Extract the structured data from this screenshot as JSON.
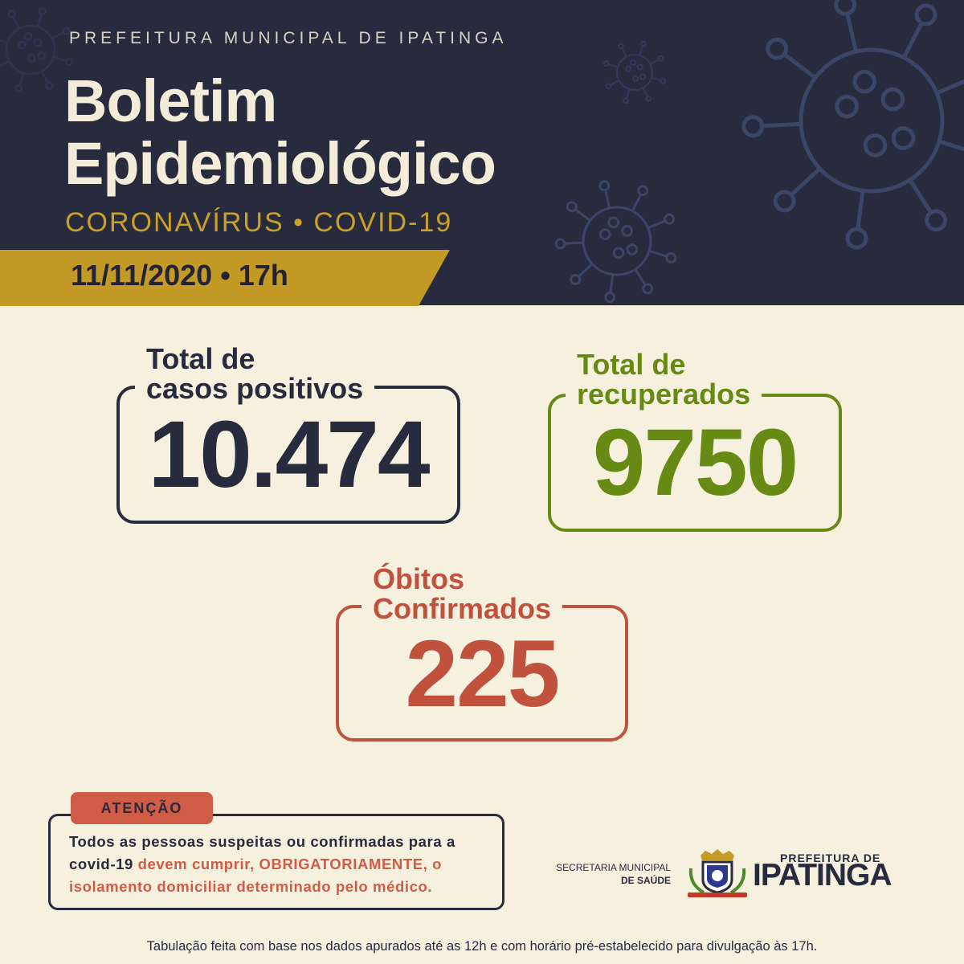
{
  "header": {
    "supertitle": "PREFEITURA MUNICIPAL DE IPATINGA",
    "title_line1": "Boletim",
    "title_line2": "Epidemiológico",
    "subtitle": "CORONAVÍRUS • COVID-19",
    "date": "11/11/2020 • 17h"
  },
  "stats": {
    "positive": {
      "label_line1": "Total de",
      "label_line2": "casos positivos",
      "value": "10.474",
      "color": "#282a3e"
    },
    "recovered": {
      "label_line1": "Total de",
      "label_line2": "recuperados",
      "value": "9750",
      "color": "#668a14"
    },
    "deaths": {
      "label_line1": "Óbitos",
      "label_line2": "Confirmados",
      "value": "225",
      "color": "#c0523d"
    }
  },
  "notice": {
    "tag": "ATENÇÃO",
    "text_before": "Todos as pessoas suspeitas ou confirmadas para a covid-19 ",
    "text_highlight": "devem cumprir, OBRIGATORIAMENTE, o isolamento domiciliar determinado pelo médico.",
    "highlight_color": "#cf5c46"
  },
  "logos": {
    "secretaria_line1": "SECRETARIA MUNICIPAL",
    "secretaria_line2": "DE SAÚDE",
    "prefeitura_small": "PREFEITURA DE",
    "prefeitura_big": "IPATINGA"
  },
  "footer": "Tabulação feita com base nos dados apurados até as 12h e com horário pré-estabelecido para divulgação às 17h.",
  "colors": {
    "navy": "#282a3e",
    "cream": "#f6f0de",
    "gold": "#c49a26",
    "green": "#668a14",
    "red": "#c0523d"
  }
}
